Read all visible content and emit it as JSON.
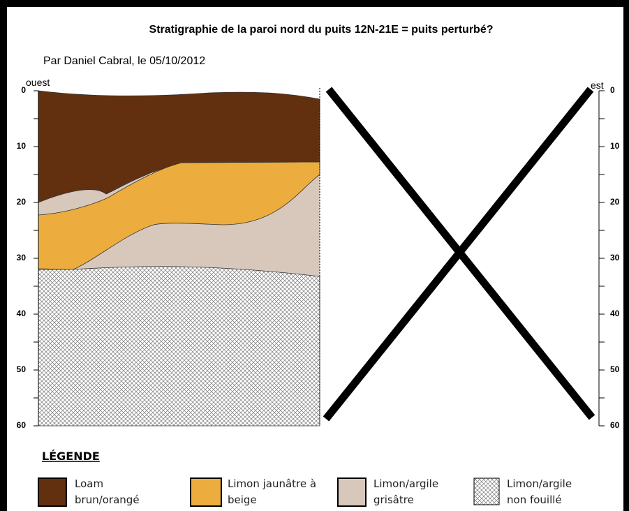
{
  "header": {
    "title": "Stratigraphie de la paroi nord du puits 12N-21E = puits perturbé?",
    "author": "Par Daniel Cabral, le 05/10/2012"
  },
  "profile": {
    "left_label": "ouest",
    "right_label": "est",
    "depth_lim": [
      0,
      60
    ],
    "depth_ticks": [
      0,
      10,
      20,
      30,
      40,
      50,
      60
    ]
  },
  "legend": {
    "title": "LÉGENDE",
    "items": [
      {
        "lines": [
          "Loam",
          "brun/orangé"
        ]
      },
      {
        "lines": [
          "Limon jaunâtre à",
          "beige"
        ]
      },
      {
        "lines": [
          "Limon/argile",
          "grisâtre"
        ]
      },
      {
        "lines": [
          "Limon/argile",
          "non fouillé"
        ]
      }
    ]
  }
}
